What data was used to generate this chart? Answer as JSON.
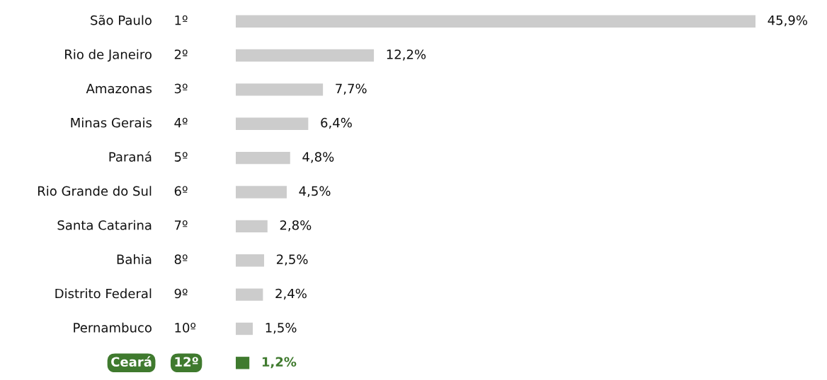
{
  "chart_data": {
    "type": "bar",
    "orientation": "horizontal",
    "categories": [
      "São Paulo",
      "Rio de Janeiro",
      "Amazonas",
      "Minas Gerais",
      "Paraná",
      "Rio Grande do Sul",
      "Santa Catarina",
      "Bahia",
      "Distrito Federal",
      "Pernambuco",
      "Ceará"
    ],
    "values": [
      45.9,
      12.2,
      7.7,
      6.4,
      4.8,
      4.5,
      2.8,
      2.5,
      2.4,
      1.5,
      1.2
    ],
    "value_labels": [
      "45,9%",
      "12,2%",
      "7,7%",
      "6,4%",
      "4,8%",
      "4,5%",
      "2,8%",
      "2,5%",
      "2,4%",
      "1,5%",
      "1,2%"
    ],
    "color": "#cccccc",
    "colors": [
      "#cccccc",
      "#cccccc",
      "#cccccc",
      "#cccccc",
      "#cccccc",
      "#cccccc",
      "#cccccc",
      "#cccccc",
      "#cccccc",
      "#cccccc",
      "#3f7a2e"
    ],
    "annotations": [
      "1º",
      "2º",
      "3º",
      "4º",
      "5º",
      "6º",
      "7º",
      "8º",
      "9º",
      "10º",
      "12º"
    ]
  }
}
